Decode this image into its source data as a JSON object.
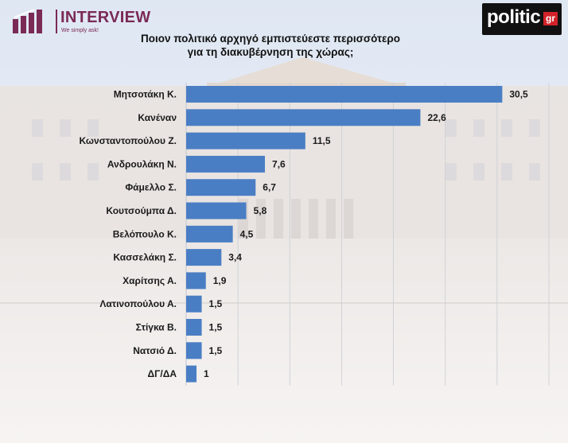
{
  "header": {
    "brand_name": "INTERVIEW",
    "brand_tagline": "We simply ask!",
    "partner_logo_word": "politic",
    "partner_logo_suffix": "gr"
  },
  "colors": {
    "bar": "#4a7ec4",
    "grid": "#c9ccd3",
    "brand": "#7a2a55",
    "partner_accent": "#d2232a"
  },
  "chart_data": {
    "type": "bar",
    "orientation": "horizontal",
    "title": "Ποιον πολιτικό αρχηγό εμπιστεύεστε περισσότερο\nγια τη διακυβέρνηση της χώρας;",
    "categories": [
      "Μητσοτάκη Κ.",
      "Κανέναν",
      "Κωνσταντοπούλου Ζ.",
      "Ανδρουλάκη Ν.",
      "Φάμελλο Σ.",
      "Κουτσούμπα Δ.",
      "Βελόπουλο Κ.",
      "Κασσελάκη Σ.",
      "Χαρίτσης Α.",
      "Λατινοπούλου Α.",
      "Στίγκα Β.",
      "Νατσιό Δ.",
      "ΔΓ/ΔΑ"
    ],
    "values": [
      30.5,
      22.6,
      11.5,
      7.6,
      6.7,
      5.8,
      4.5,
      3.4,
      1.9,
      1.5,
      1.5,
      1.5,
      1
    ],
    "value_labels": [
      "30,5",
      "22,6",
      "11,5",
      "7,6",
      "6,7",
      "5,8",
      "4,5",
      "3,4",
      "1,9",
      "1,5",
      "1,5",
      "1,5",
      "1"
    ],
    "xlim": [
      0,
      35
    ],
    "grid": true,
    "legend": "none"
  }
}
